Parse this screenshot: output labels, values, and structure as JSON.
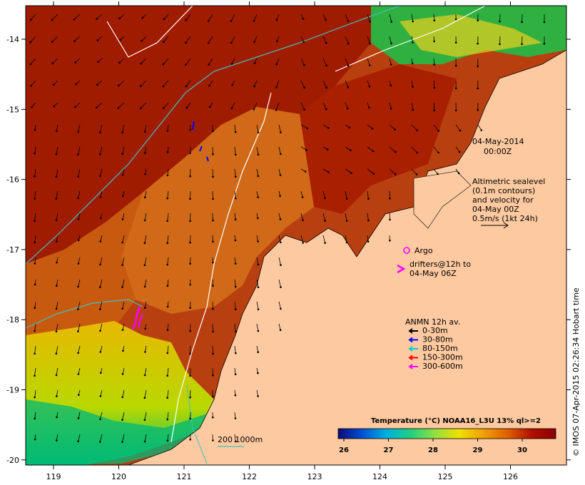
{
  "map": {
    "timestamp_date": "04-May-2014",
    "timestamp_time": "00:00Z",
    "altimetry_lines": [
      "Altimetric sealevel",
      "(0.1m contours)",
      "and velocity for",
      "04-May 00Z",
      "0.5m/s (1kt 24h)"
    ],
    "argo_label": "Argo",
    "drifters_lines": [
      "drifters@12h to",
      "04-May 06Z"
    ],
    "anmn_title": "ANMN 12h av.",
    "anmn_items": [
      {
        "label": "0-30m",
        "color": "#000000"
      },
      {
        "label": "30-80m",
        "color": "#0000ff"
      },
      {
        "label": "80-150m",
        "color": "#00d0d0"
      },
      {
        "label": "150-300m",
        "color": "#ff0000"
      },
      {
        "label": "300-600m",
        "color": "#ff00ff"
      }
    ],
    "depth_label": "200  1000m",
    "colorbar_title": "Temperature (°C) NOAA16_L3U 13% ql>=2",
    "colorbar_ticks": [
      "26",
      "27",
      "28",
      "29",
      "30"
    ],
    "colorbar_colors": [
      "#0a0a7a",
      "#0050d0",
      "#00b0e0",
      "#20d080",
      "#90e040",
      "#f0e000",
      "#f0a000",
      "#e06000",
      "#b01000",
      "#8b0000"
    ],
    "credit": "© IMOS 07-Apr-2015 02:26:34 Hobart time",
    "lon_ticks": [
      "119",
      "120",
      "121",
      "122",
      "123",
      "124",
      "125",
      "126"
    ],
    "lat_ticks": [
      "-14",
      "-15",
      "-16",
      "-17",
      "-18",
      "-19",
      "-20"
    ],
    "colors": {
      "land": "#fdc9a0",
      "warm": "#a01c00",
      "mid": "#d86a10",
      "cool": "#e8b800",
      "front_line": "#ffffff",
      "isobath_200": "#40c0c0"
    }
  }
}
